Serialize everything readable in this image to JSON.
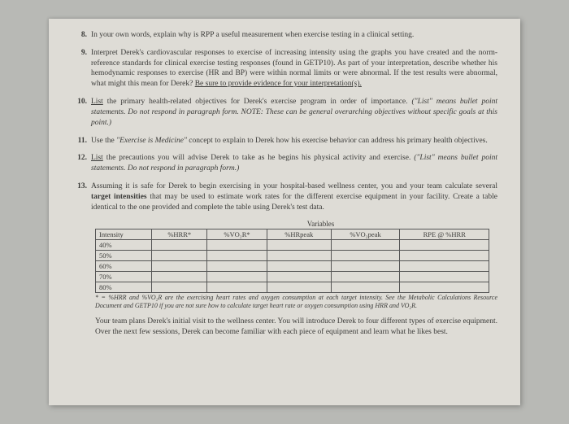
{
  "items": [
    {
      "num": "8.",
      "html": "In your own words, explain why is RPP a useful measurement when exercise testing in a clinical setting."
    },
    {
      "num": "9.",
      "html": "Interpret Derek's cardiovascular responses to exercise of increasing intensity using the graphs you have created and the norm-reference standards for clinical exercise testing responses (found in GETP10). As part of your interpretation, describe whether his hemodynamic responses to exercise (HR and BP) were within normal limits or were abnormal. If the test results were abnormal, what might this mean for Derek? <span class=\"u\">Be sure to provide evidence for your interpretation(s).</span>"
    },
    {
      "num": "10.",
      "html": "<span class=\"u\">List</span> the primary health-related objectives for Derek's exercise program in order of importance. <span class=\"i\">(\"List\" means bullet point statements. Do not respond in paragraph form. NOTE: These can be general overarching objectives without specific goals at this point.)</span>"
    },
    {
      "num": "11.",
      "html": "Use the <span class=\"i\">\"Exercise is Medicine\"</span> concept to explain to Derek how his exercise behavior can address his primary health objectives."
    },
    {
      "num": "12.",
      "html": "<span class=\"u\">List</span> the precautions you will advise Derek to take as he begins his physical activity and exercise. <span class=\"i\">(\"List\" means bullet point statements. Do not respond in paragraph form.)</span>"
    },
    {
      "num": "13.",
      "html": "Assuming it is safe for Derek to begin exercising in your hospital-based wellness center, you and your team calculate several <span class=\"b\">target intensities</span> that may be used to estimate work rates for the different exercise equipment in your facility. Create a table identical to the one provided and complete the table using Derek's test data."
    }
  ],
  "table": {
    "variablesLabel": "Variables",
    "headers": [
      "Intensity",
      "%HRR*",
      "%VO₂R*",
      "%HRpeak",
      "%VO₂peak",
      "RPE @ %HRR"
    ],
    "rows": [
      "40%",
      "50%",
      "60%",
      "70%",
      "80%"
    ]
  },
  "footnote": "* = %HRR and %VO₂R are the exercising heart rates and oxygen consumption at each target intensity. See the Metabolic Calculations Resource Document and GETP10 if you are not sure how to calculate target heart rate or oxygen consumption using HRR and VO₂R.",
  "closing": "Your team plans Derek's initial visit to the wellness center. You will introduce Derek to four different types of exercise equipment. Over the next few sessions, Derek can become familiar with each piece of equipment and learn what he likes best."
}
